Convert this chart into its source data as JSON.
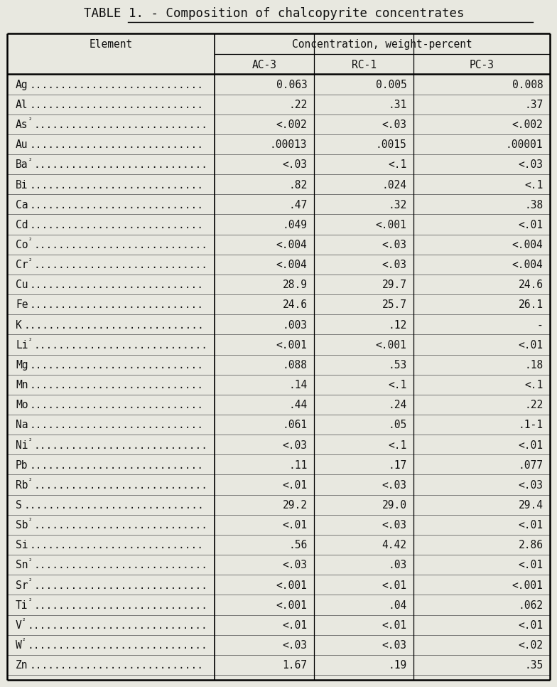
{
  "title": "TABLE 1. - Composition of chalcopyrite concentrates",
  "title_prefix": "TABLE 1. - ",
  "title_underline_part": "Composition of chalcopyrite concentrates",
  "header_col": "Element",
  "header_group": "Concentration, weight-percent",
  "subheaders": [
    "AC-3",
    "RC-1",
    "PC-3"
  ],
  "rows": [
    [
      "Ag",
      "0.063",
      "0.005",
      "0.008"
    ],
    [
      "Al",
      ".22",
      ".31",
      ".37"
    ],
    [
      "As²",
      "<.002",
      "<.03",
      "<.002"
    ],
    [
      "Au",
      ".00013",
      ".0015",
      ".00001"
    ],
    [
      "Ba²",
      "<.03",
      "<.1",
      "<.03"
    ],
    [
      "Bi",
      ".82",
      ".024",
      "<.1"
    ],
    [
      "Ca",
      ".47",
      ".32",
      ".38"
    ],
    [
      "Cd",
      ".049",
      "<.001",
      "<.01"
    ],
    [
      "Co²",
      "<.004",
      "<.03",
      "<.004"
    ],
    [
      "Cr²",
      "<.004",
      "<.03",
      "<.004"
    ],
    [
      "Cu",
      "28.9",
      "29.7",
      "24.6"
    ],
    [
      "Fe",
      "24.6",
      "25.7",
      "26.1"
    ],
    [
      "K",
      ".003",
      ".12",
      "-"
    ],
    [
      "Li²",
      "<.001",
      "<.001",
      "<.01"
    ],
    [
      "Mg",
      ".088",
      ".53",
      ".18"
    ],
    [
      "Mn",
      ".14",
      "<.1",
      "<.1"
    ],
    [
      "Mo",
      ".44",
      ".24",
      ".22"
    ],
    [
      "Na",
      ".061",
      ".05",
      ".1-1"
    ],
    [
      "Ni²",
      "<.03",
      "<.1",
      "<.01"
    ],
    [
      "Pb",
      ".11",
      ".17",
      ".077"
    ],
    [
      "Rb²",
      "<.01",
      "<.03",
      "<.03"
    ],
    [
      "S",
      "29.2",
      "29.0",
      "29.4"
    ],
    [
      "Sb²",
      "<.01",
      "<.03",
      "<.01"
    ],
    [
      "Si",
      ".56",
      "4.42",
      "2.86"
    ],
    [
      "Sn²",
      "<.03",
      ".03",
      "<.01"
    ],
    [
      "Sr²",
      "<.001",
      "<.01",
      "<.001"
    ],
    [
      "Ti²",
      "<.001",
      ".04",
      ".062"
    ],
    [
      "V²",
      "<.01",
      "<.01",
      "<.01"
    ],
    [
      "W²",
      "<.03",
      "<.03",
      "<.02"
    ],
    [
      "Zn",
      "1.67",
      ".19",
      ".35"
    ]
  ],
  "bg_color": "#e8e8e0",
  "text_color": "#111111",
  "font_size": 10.5,
  "title_font_size": 12.5
}
